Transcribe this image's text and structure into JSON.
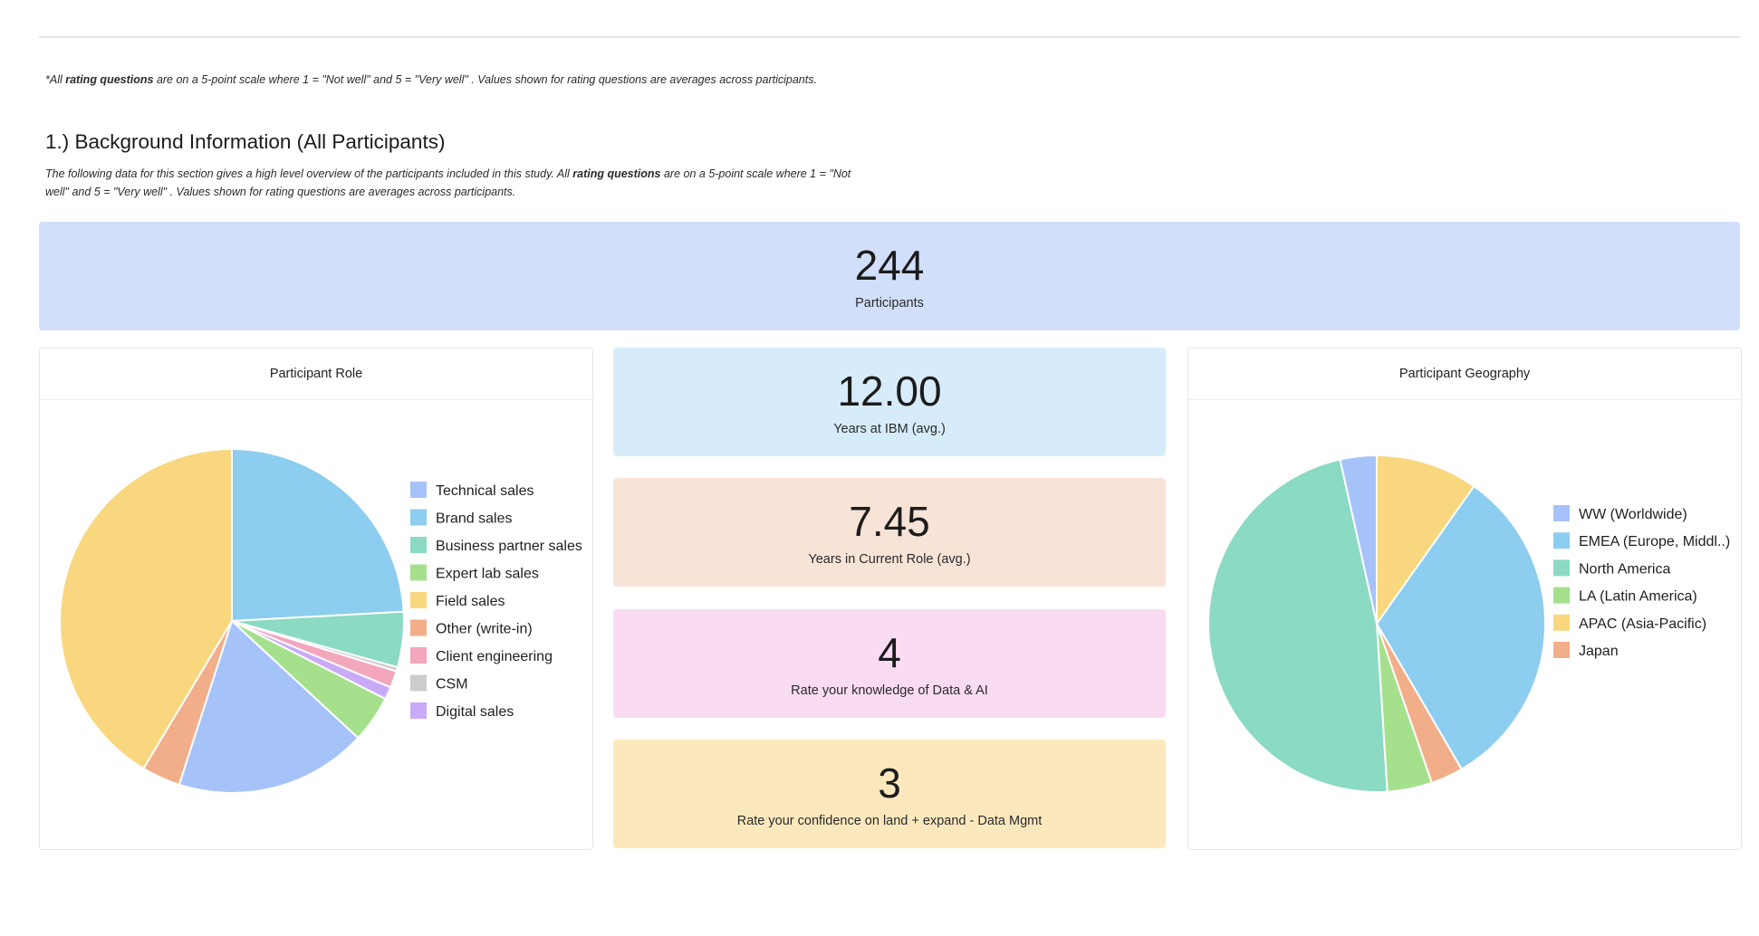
{
  "note": {
    "prefix": "*All ",
    "bold": "rating questions",
    "suffix": " are on a 5-point scale where 1 = \"Not well\" and 5 = \"Very well\" . Values shown for rating questions are averages across participants."
  },
  "section": {
    "title": "1.) Background Information (All Participants)",
    "desc_prefix": "The following data for this section gives a high level overview of the participants included in this study. All ",
    "desc_bold": "rating questions",
    "desc_suffix": " are on a 5-point scale where 1 = \"Not well\" and 5 = \"Very well\" . Values shown for rating questions are averages across participants."
  },
  "kpis": {
    "participants": {
      "value": "244",
      "label": "Participants"
    },
    "years_ibm": {
      "value": "12.00",
      "label": "Years at IBM (avg.)"
    },
    "years_role": {
      "value": "7.45",
      "label": "Years in Current Role (avg.)"
    },
    "knowledge": {
      "value": "4",
      "label": "Rate your knowledge of Data & AI"
    },
    "confidence": {
      "value": "3",
      "label": "Rate your confidence on land + expand - Data Mgmt"
    }
  },
  "chart_data": [
    {
      "type": "pie",
      "title": "Participant Role",
      "categories": [
        "Technical sales",
        "Brand sales",
        "Business partner sales",
        "Expert lab sales",
        "Field sales",
        "Other (write-in)",
        "Client engineering",
        "CSM",
        "Digital sales"
      ],
      "values": [
        18.4,
        24.6,
        5.3,
        4.5,
        42.2,
        3.7,
        1.6,
        0.4,
        1.2
      ],
      "slice_order": [
        "Brand sales",
        "Business partner sales",
        "CSM",
        "Client engineering",
        "Digital sales",
        "Expert lab sales",
        "Technical sales",
        "Other (write-in)",
        "Field sales"
      ],
      "colors": [
        "#a6c3f9",
        "#8ccdf0",
        "#8bdac4",
        "#a5e08d",
        "#f8d77f",
        "#f2ae89",
        "#f4a6bd",
        "#cccccc",
        "#c9aaf7"
      ],
      "legend_position": "right"
    },
    {
      "type": "pie",
      "title": "Participant Geography",
      "categories": [
        "WW (Worldwide)",
        "EMEA (Europe, Middl..)",
        "North America",
        "LA (Latin America)",
        "APAC (Asia-Pacific)",
        "Japan"
      ],
      "values": [
        3.5,
        31.8,
        47.5,
        4.3,
        9.8,
        3.1
      ],
      "slice_order": [
        "APAC (Asia-Pacific)",
        "EMEA (Europe, Middl..)",
        "Japan",
        "LA (Latin America)",
        "North America",
        "WW (Worldwide)"
      ],
      "colors": [
        "#a6c3f9",
        "#8ccdf0",
        "#8bdac4",
        "#a5e08d",
        "#f8d77f",
        "#f2ae89"
      ],
      "legend_position": "right"
    }
  ]
}
